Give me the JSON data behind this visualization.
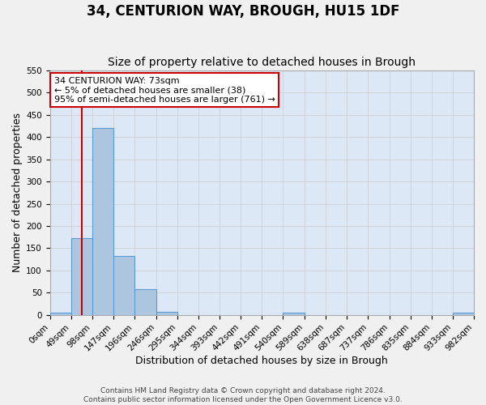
{
  "title": "34, CENTURION WAY, BROUGH, HU15 1DF",
  "subtitle": "Size of property relative to detached houses in Brough",
  "xlabel": "Distribution of detached houses by size in Brough",
  "ylabel": "Number of detached properties",
  "bin_edges": [
    0,
    49,
    98,
    147,
    196,
    246,
    295,
    344,
    393,
    442,
    491,
    540,
    589,
    638,
    687,
    737,
    786,
    835,
    884,
    933,
    982
  ],
  "bin_labels": [
    "0sqm",
    "49sqm",
    "98sqm",
    "147sqm",
    "196sqm",
    "246sqm",
    "295sqm",
    "344sqm",
    "393sqm",
    "442sqm",
    "491sqm",
    "540sqm",
    "589sqm",
    "638sqm",
    "687sqm",
    "737sqm",
    "786sqm",
    "835sqm",
    "884sqm",
    "933sqm",
    "982sqm"
  ],
  "counts": [
    5,
    173,
    420,
    133,
    58,
    7,
    0,
    0,
    0,
    0,
    0,
    5,
    0,
    0,
    0,
    0,
    0,
    0,
    0,
    5
  ],
  "bar_color": "#adc6e0",
  "bar_edge_color": "#5b9bd5",
  "property_line_x": 73,
  "property_line_color": "#cc0000",
  "annotation_line1": "34 CENTURION WAY: 73sqm",
  "annotation_line2": "← 5% of detached houses are smaller (38)",
  "annotation_line3": "95% of semi-detached houses are larger (761) →",
  "annotation_box_color": "#ffffff",
  "annotation_box_edge_color": "#cc0000",
  "ylim": [
    0,
    550
  ],
  "yticks": [
    0,
    50,
    100,
    150,
    200,
    250,
    300,
    350,
    400,
    450,
    500,
    550
  ],
  "grid_color": "#cccccc",
  "bg_color": "#dce8f5",
  "fig_bg_color": "#f0f0f0",
  "footer_line1": "Contains HM Land Registry data © Crown copyright and database right 2024.",
  "footer_line2": "Contains public sector information licensed under the Open Government Licence v3.0.",
  "title_fontsize": 12,
  "subtitle_fontsize": 10,
  "axis_label_fontsize": 9,
  "tick_fontsize": 7.5,
  "annotation_fontsize": 8,
  "footer_fontsize": 6.5
}
